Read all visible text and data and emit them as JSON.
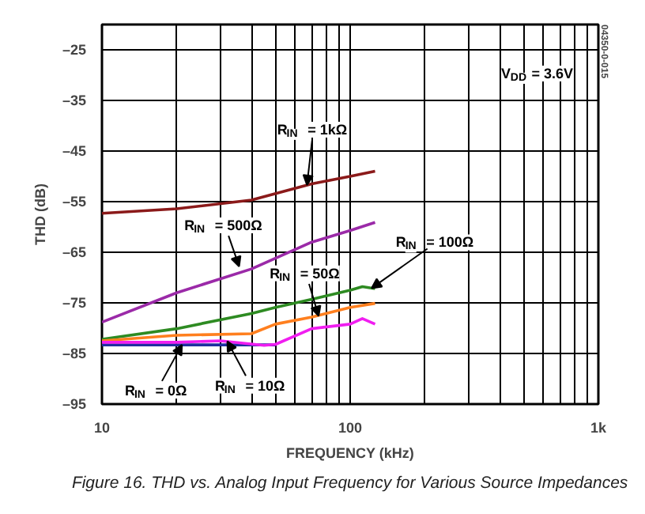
{
  "chart_data": {
    "type": "line",
    "xlabel": "FREQUENCY (kHz)",
    "ylabel": "THD (dB)",
    "log": "x",
    "xlim": [
      10,
      1000
    ],
    "ylim": [
      -95,
      -20
    ],
    "xticks": [
      10,
      {
        "value": 20,
        "label": null
      },
      {
        "value": 30,
        "label": null
      },
      {
        "value": 40,
        "label": null
      },
      {
        "value": 50,
        "label": null
      },
      {
        "value": 60,
        "label": null
      },
      {
        "value": 70,
        "label": null
      },
      {
        "value": 80,
        "label": null
      },
      {
        "value": 90,
        "label": null
      },
      100,
      {
        "value": 200,
        "label": null
      },
      {
        "value": 300,
        "label": null
      },
      {
        "value": 400,
        "label": null
      },
      {
        "value": 500,
        "label": null
      },
      {
        "value": 600,
        "label": null
      },
      {
        "value": 700,
        "label": null
      },
      {
        "value": 800,
        "label": null
      },
      {
        "value": 900,
        "label": null
      },
      {
        "value": 1000,
        "label": "1k"
      }
    ],
    "yticks": [
      {
        "value": -25,
        "label": "–25"
      },
      {
        "value": -35,
        "label": "–35"
      },
      {
        "value": -45,
        "label": "–45"
      },
      {
        "value": -55,
        "label": "–55"
      },
      {
        "value": -65,
        "label": "–65"
      },
      {
        "value": -75,
        "label": "–75"
      },
      {
        "value": -85,
        "label": "–85"
      },
      {
        "value": -95,
        "label": "–95"
      }
    ],
    "grid": true,
    "series": [
      {
        "color": "#8b1a1a",
        "x": [
          10,
          20,
          40,
          70,
          100,
          126
        ],
        "values": [
          -57.3,
          -56.4,
          -54.7,
          -51.5,
          -50.0,
          -49.0
        ]
      },
      {
        "color": "#9b2aa8",
        "x": [
          10,
          20,
          40,
          70,
          100,
          126
        ],
        "values": [
          -78.8,
          -73.0,
          -68.3,
          -63.0,
          -60.7,
          -59.1
        ]
      },
      {
        "color": "#2e8b22",
        "x": [
          10,
          20,
          40,
          50,
          70,
          100,
          112,
          126
        ],
        "values": [
          -82.2,
          -80.1,
          -77.1,
          -75.9,
          -74.3,
          -72.5,
          -71.8,
          -72.2
        ]
      },
      {
        "color": "#ff7f1e",
        "x": [
          10,
          20,
          40,
          50,
          70,
          100,
          126
        ],
        "values": [
          -82.5,
          -81.4,
          -81.1,
          -79.2,
          -77.8,
          -75.9,
          -75.1
        ]
      },
      {
        "color": "#1f2fa0",
        "x": [
          10,
          20,
          40,
          50
        ],
        "values": [
          -83.3,
          -83.3,
          -83.3,
          -83.3
        ]
      },
      {
        "color": "#f01ef0",
        "x": [
          10,
          20,
          30,
          45,
          50,
          70,
          100,
          112,
          126
        ],
        "values": [
          -82.8,
          -82.8,
          -82.5,
          -83.4,
          -83.2,
          -80.1,
          -79.2,
          -78.1,
          -79.2
        ]
      }
    ],
    "annotations": [
      "V$_{DD}$ = 3.6V",
      {
        "text": "R$_{IN}$ = 1kΩ",
        "x": 67,
        "y": -51.7
      },
      {
        "text": "R$_{IN}$ = 500Ω",
        "x": 35.7,
        "y": -67.8
      },
      {
        "text": "R$_{IN}$ = 50Ω",
        "x": 74.6,
        "y": -77.6
      },
      {
        "text": "R$_{IN}$ = 100Ω",
        "x": 122,
        "y": -72.1
      },
      {
        "text": "R$_{IN}$ = 0Ω",
        "x": 21,
        "y": -83.3
      },
      {
        "text": "R$_{IN}$ = 10Ω",
        "x": 32,
        "y": -82.6
      },
      "04350-0-015",
      "Figure 16. THD vs. Analog Input Frequency for Various Source Impedances"
    ]
  }
}
